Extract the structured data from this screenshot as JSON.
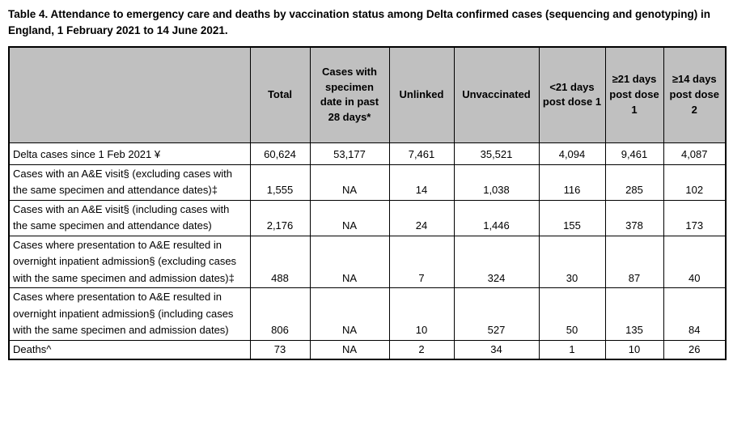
{
  "title": "Table 4. Attendance to emergency care and deaths by vaccination status among Delta confirmed cases (sequencing and genotyping) in England, 1 February 2021 to 14 June 2021.",
  "table": {
    "header_bg": "#c0c0c0",
    "border_color": "#000000",
    "columns": [
      "",
      "Total",
      "Cases with specimen date in past 28 days*",
      "Unlinked",
      "Unvaccinated",
      "<21 days post dose 1",
      "≥21 days post dose 1",
      "≥14 days post dose 2"
    ],
    "rows": [
      {
        "label": "Delta cases since 1 Feb 2021 ¥",
        "values": [
          "60,624",
          "53,177",
          "7,461",
          "35,521",
          "4,094",
          "9,461",
          "4,087"
        ]
      },
      {
        "label": "Cases with an A&E visit§ (excluding cases with the same specimen and attendance dates)‡",
        "values": [
          "1,555",
          "NA",
          "14",
          "1,038",
          "116",
          "285",
          "102"
        ]
      },
      {
        "label": "Cases with an A&E visit§ (including cases with the same specimen and attendance dates)",
        "values": [
          "2,176",
          "NA",
          "24",
          "1,446",
          "155",
          "378",
          "173"
        ]
      },
      {
        "label": "Cases where presentation to A&E resulted in overnight inpatient admission§ (excluding cases with the same specimen and admission dates)‡",
        "values": [
          "488",
          "NA",
          "7",
          "324",
          "30",
          "87",
          "40"
        ]
      },
      {
        "label": "Cases where presentation to A&E resulted in overnight inpatient admission§ (including cases with the same specimen and admission dates)",
        "values": [
          "806",
          "NA",
          "10",
          "527",
          "50",
          "135",
          "84"
        ]
      },
      {
        "label": "Deaths^",
        "values": [
          "73",
          "NA",
          "2",
          "34",
          "1",
          "10",
          "26"
        ]
      }
    ]
  }
}
